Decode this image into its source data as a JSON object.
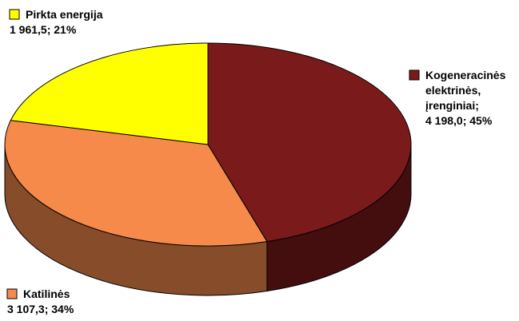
{
  "chart_data": {
    "type": "pie",
    "title": "",
    "slices": [
      {
        "name": "Kogeneracinės elektrinės, įrenginiai",
        "value": 4198.0,
        "percent": 45,
        "color": "#7b1a1a",
        "label_lines": [
          "Kogeneracinės",
          "elektrinės,",
          "įrenginiai;",
          "4 198,0; 45%"
        ]
      },
      {
        "name": "Katilinės",
        "value": 3107.3,
        "percent": 34,
        "color": "#f58a4b",
        "label_lines": [
          "Katilinės",
          "3 107,3; 34%"
        ]
      },
      {
        "name": "Pirkta energija",
        "value": 1961.5,
        "percent": 21,
        "color": "#ffff00",
        "label_lines": [
          "Pirkta energija",
          "1 961,5; 21%"
        ]
      }
    ],
    "style": "3d-pie",
    "start_angle_deg": 0,
    "direction": "clockwise"
  }
}
